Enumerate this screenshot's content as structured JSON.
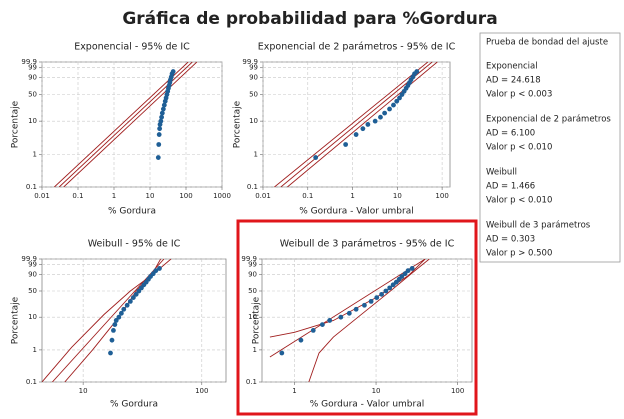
{
  "title": "Gráfica de probabilidad para %Gordura",
  "goodness_of_fit": {
    "title": "Prueba de bondad del ajuste",
    "entries": [
      {
        "name": "Exponencial",
        "ad": "AD = 24.618",
        "p": "Valor p < 0.003"
      },
      {
        "name": "Exponencial de 2 parámetros",
        "ad": "AD = 6.100",
        "p": "Valor p < 0.010"
      },
      {
        "name": "Weibull",
        "ad": "AD = 1.466",
        "p": "Valor p < 0.010"
      },
      {
        "name": "Weibull de 3 parámetros",
        "ad": "AD = 0.303",
        "p": "Valor p > 0.500"
      }
    ]
  },
  "chart_data": [
    {
      "type": "probability",
      "title": "Exponencial - 95% de IC",
      "xlabel": "% Gordura",
      "ylabel": "Porcentaje",
      "x_scale": "log",
      "y_scale": "weibull",
      "grid": true,
      "xlim": [
        0.01,
        1000
      ],
      "xticks": [
        0.01,
        0.1,
        1,
        10,
        100,
        1000
      ],
      "ylim": [
        0.1,
        99.9
      ],
      "yticks": [
        0.1,
        1,
        10,
        50,
        90,
        99,
        99.9
      ],
      "points": {
        "color": "#1f5f96",
        "x": [
          17,
          17.5,
          18,
          18.5,
          19,
          20,
          21,
          22,
          23.5,
          25,
          26.5,
          28,
          29.5,
          31,
          32.5,
          34,
          35.5,
          37,
          39,
          41,
          44
        ],
        "y": [
          0.8,
          2,
          4,
          6,
          8,
          10,
          13,
          17,
          22,
          28,
          35,
          42,
          50,
          58,
          66,
          73,
          80,
          86,
          91,
          95,
          97
        ]
      },
      "lines": [
        {
          "color": "#a01e1e",
          "x": [
            0.03,
            150
          ],
          "y": [
            0.1,
            99.9
          ]
        },
        {
          "color": "#a01e1e",
          "x": [
            0.022,
            115
          ],
          "y": [
            0.1,
            99.9
          ]
        },
        {
          "color": "#a01e1e",
          "x": [
            0.04,
            200
          ],
          "y": [
            0.1,
            99.9
          ]
        }
      ]
    },
    {
      "type": "probability",
      "title": "Exponencial de 2 parámetros - 95% de IC",
      "xlabel": "% Gordura - Valor umbral",
      "ylabel": "Porcentaje",
      "x_scale": "log",
      "y_scale": "weibull",
      "grid": true,
      "xlim": [
        0.01,
        150
      ],
      "xticks": [
        0.01,
        0.1,
        1,
        10,
        100
      ],
      "ylim": [
        0.1,
        99.9
      ],
      "yticks": [
        0.1,
        1,
        10,
        50,
        90,
        99,
        99.9
      ],
      "points": {
        "color": "#1f5f96",
        "x": [
          0.15,
          0.7,
          1.2,
          1.7,
          2.2,
          3.2,
          4.2,
          5.2,
          6.7,
          8.2,
          9.7,
          11.2,
          12.7,
          14.2,
          15.7,
          17.2,
          18.7,
          20.2,
          22.2,
          24.2,
          27.2
        ],
        "y": [
          0.8,
          2,
          4,
          6,
          8,
          10,
          13,
          17,
          22,
          28,
          35,
          42,
          50,
          58,
          66,
          73,
          80,
          86,
          91,
          95,
          97
        ]
      },
      "lines": [
        {
          "color": "#a01e1e",
          "x": [
            0.025,
            60
          ],
          "y": [
            0.1,
            99.9
          ]
        },
        {
          "color": "#a01e1e",
          "x": [
            0.018,
            48
          ],
          "y": [
            0.1,
            99.9
          ]
        },
        {
          "color": "#a01e1e",
          "x": [
            0.035,
            78
          ],
          "y": [
            0.1,
            99.9
          ]
        }
      ]
    },
    {
      "type": "probability",
      "title": "Weibull - 95% de IC",
      "xlabel": "% Gordura",
      "ylabel": "Porcentaje",
      "x_scale": "log",
      "y_scale": "weibull",
      "grid": true,
      "xlim": [
        4.5,
        160
      ],
      "xticks": [
        10,
        100
      ],
      "ylim": [
        0.1,
        99.9
      ],
      "yticks": [
        0.1,
        1,
        10,
        50,
        90,
        99,
        99.9
      ],
      "points": {
        "color": "#1f5f96",
        "x": [
          17,
          17.5,
          18,
          18.5,
          19,
          20,
          21,
          22,
          23.5,
          25,
          26.5,
          28,
          29.5,
          31,
          32.5,
          34,
          35.5,
          37,
          39,
          41,
          44
        ],
        "y": [
          0.8,
          2,
          4,
          6,
          8,
          10,
          13,
          17,
          22,
          28,
          35,
          42,
          50,
          58,
          66,
          73,
          80,
          86,
          91,
          95,
          97
        ]
      },
      "lines": [
        {
          "color": "#a01e1e",
          "x": [
            5.5,
            48
          ],
          "y": [
            0.1,
            99.9
          ]
        },
        {
          "color": "#a01e1e",
          "x": [
            4.5,
            8,
            15,
            25,
            40,
            55
          ],
          "y": [
            0.1,
            1.2,
            12,
            50,
            92,
            99.9
          ]
        },
        {
          "color": "#a01e1e",
          "x": [
            7,
            12,
            20,
            28,
            38,
            45
          ],
          "y": [
            0.1,
            1,
            10,
            50,
            90,
            99.9
          ]
        }
      ]
    },
    {
      "type": "probability",
      "title": "Weibull de 3 parámetros - 95% de IC",
      "xlabel": "% Gordura - Valor umbral",
      "ylabel": "Porcentaje",
      "x_scale": "log",
      "y_scale": "weibull",
      "grid": true,
      "xlim": [
        0.4,
        150
      ],
      "xticks": [
        1,
        10,
        100
      ],
      "ylim": [
        0.1,
        99.9
      ],
      "yticks": [
        0.1,
        1,
        10,
        50,
        90,
        99,
        99.9
      ],
      "points": {
        "color": "#1f5f96",
        "x": [
          0.7,
          1.2,
          1.7,
          2.2,
          2.7,
          3.7,
          4.7,
          5.7,
          7.2,
          8.7,
          10.2,
          11.7,
          13.2,
          14.7,
          16.2,
          17.7,
          19.2,
          20.7,
          22.7,
          24.7,
          27.7
        ],
        "y": [
          0.8,
          2,
          4,
          6,
          8,
          10,
          13,
          17,
          22,
          28,
          35,
          42,
          50,
          58,
          66,
          73,
          80,
          86,
          91,
          95,
          97
        ]
      },
      "lines": [
        {
          "color": "#a01e1e",
          "x": [
            0.5,
            40
          ],
          "y": [
            0.6,
            99.9
          ]
        },
        {
          "color": "#a01e1e",
          "x": [
            0.5,
            1,
            3,
            10,
            25,
            40
          ],
          "y": [
            2.5,
            3.5,
            8,
            35,
            88,
            99.9
          ]
        },
        {
          "color": "#a01e1e",
          "x": [
            1.5,
            2,
            3,
            6,
            15,
            30,
            45
          ],
          "y": [
            0.1,
            0.8,
            2.5,
            10,
            50,
            95,
            99.9
          ]
        }
      ]
    }
  ]
}
